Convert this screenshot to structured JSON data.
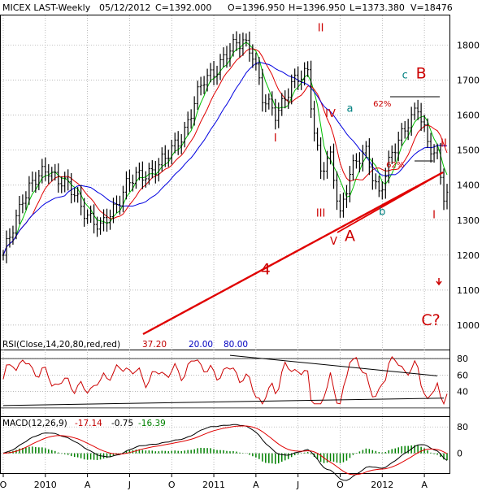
{
  "header": {
    "symbol_label": "MICEX LAST-Weekly",
    "date": "05/12/2012",
    "close": "C=1392.000",
    "open": "O=1396.950",
    "high": "H=1396.950",
    "low": "L=1373.380",
    "volume": "V=18476"
  },
  "colors": {
    "background": "#ffffff",
    "grid": "#a0a0a0",
    "price_bars": "#000000",
    "ma_green": "#00c000",
    "ma_red": "#e00000",
    "ma_blue": "#0000e0",
    "wave_red": "#cc0000",
    "wave_teal": "#008080",
    "trendline_red": "#e00000",
    "rsi_line": "#cc0000",
    "macd_line": "#000000",
    "signal_line": "#e00000",
    "histogram": "#008000"
  },
  "chart_data": [
    {
      "type": "line",
      "panel": "price",
      "title": "MICEX LAST-Weekly",
      "y_ticks": [
        "1800",
        "1700",
        "1600",
        "1500",
        "1400",
        "1300",
        "1200",
        "1100",
        "1000"
      ],
      "ylim": [
        930,
        1885
      ],
      "x_tick_labels": [
        "O",
        "2010",
        "A",
        "J",
        "O",
        "2011",
        "A",
        "J",
        "O",
        "2012",
        "A"
      ],
      "x_tick_weeks": [
        0,
        13,
        26,
        39,
        52,
        65,
        78,
        91,
        104,
        117,
        130
      ],
      "total_weeks": 138,
      "grid": true,
      "key_points": [
        {
          "week": 0,
          "close": 1190
        },
        {
          "week": 6,
          "close": 1370
        },
        {
          "week": 14,
          "close": 1450
        },
        {
          "week": 22,
          "close": 1370
        },
        {
          "week": 30,
          "close": 1270
        },
        {
          "week": 38,
          "close": 1400
        },
        {
          "week": 50,
          "close": 1470
        },
        {
          "week": 56,
          "close": 1560
        },
        {
          "week": 62,
          "close": 1700
        },
        {
          "week": 68,
          "close": 1760
        },
        {
          "week": 74,
          "close": 1820
        },
        {
          "week": 77,
          "close": 1780
        },
        {
          "week": 80,
          "close": 1640
        },
        {
          "week": 84,
          "close": 1610
        },
        {
          "week": 89,
          "close": 1680
        },
        {
          "week": 94,
          "close": 1730
        },
        {
          "week": 96,
          "close": 1560
        },
        {
          "week": 98,
          "close": 1440
        },
        {
          "week": 101,
          "close": 1470
        },
        {
          "week": 104,
          "close": 1320
        },
        {
          "week": 107,
          "close": 1440
        },
        {
          "week": 112,
          "close": 1490
        },
        {
          "week": 116,
          "close": 1380
        },
        {
          "week": 120,
          "close": 1480
        },
        {
          "week": 125,
          "close": 1590
        },
        {
          "week": 128,
          "close": 1620
        },
        {
          "week": 131,
          "close": 1510
        },
        {
          "week": 134,
          "close": 1490
        },
        {
          "week": 136,
          "close": 1380
        }
      ],
      "wave_labels": [
        {
          "text": "II",
          "week": 98,
          "price": 1840,
          "color": "red"
        },
        {
          "text": "I",
          "week": 84,
          "price": 1525,
          "color": "red"
        },
        {
          "text": "IV",
          "week": 101,
          "price": 1595,
          "color": "red"
        },
        {
          "text": "a",
          "week": 107,
          "price": 1610,
          "color": "teal"
        },
        {
          "text": "III",
          "week": 98,
          "price": 1310,
          "color": "red"
        },
        {
          "text": "V",
          "week": 102,
          "price": 1230,
          "color": "red"
        },
        {
          "text": "A",
          "week": 107,
          "price": 1240,
          "color": "red"
        },
        {
          "text": "b",
          "week": 117,
          "price": 1315,
          "color": "teal"
        },
        {
          "text": "c",
          "week": 124,
          "price": 1705,
          "color": "teal"
        },
        {
          "text": "B",
          "week": 129,
          "price": 1705,
          "color": "red"
        },
        {
          "text": "62%",
          "week": 117,
          "price": 1625,
          "color": "red"
        },
        {
          "text": "62%",
          "week": 121,
          "price": 1450,
          "color": "red"
        },
        {
          "text": "II",
          "week": 136,
          "price": 1510,
          "color": "red"
        },
        {
          "text": "I",
          "week": 133,
          "price": 1305,
          "color": "red"
        },
        {
          "text": "4",
          "week": 81,
          "price": 1145,
          "color": "red"
        },
        {
          "text": "C?",
          "week": 132,
          "price": 1000,
          "color": "red"
        }
      ]
    },
    {
      "type": "line",
      "panel": "rsi",
      "legend": "RSI(Close,14,20,80,red,red)",
      "values_text": [
        "37.20",
        "20.00",
        "80.00"
      ],
      "y_ticks": [
        "80",
        "60",
        "40"
      ],
      "ylim": [
        10,
        90
      ],
      "levels": [
        20,
        80
      ],
      "last_value": 37.2
    },
    {
      "type": "line",
      "panel": "macd",
      "legend": "MACD(12,26,9)",
      "values_text": [
        "-17.14",
        "-0.75",
        "-16.39"
      ],
      "y_ticks": [
        "80",
        "0"
      ],
      "ylim": [
        -60,
        110
      ]
    }
  ]
}
